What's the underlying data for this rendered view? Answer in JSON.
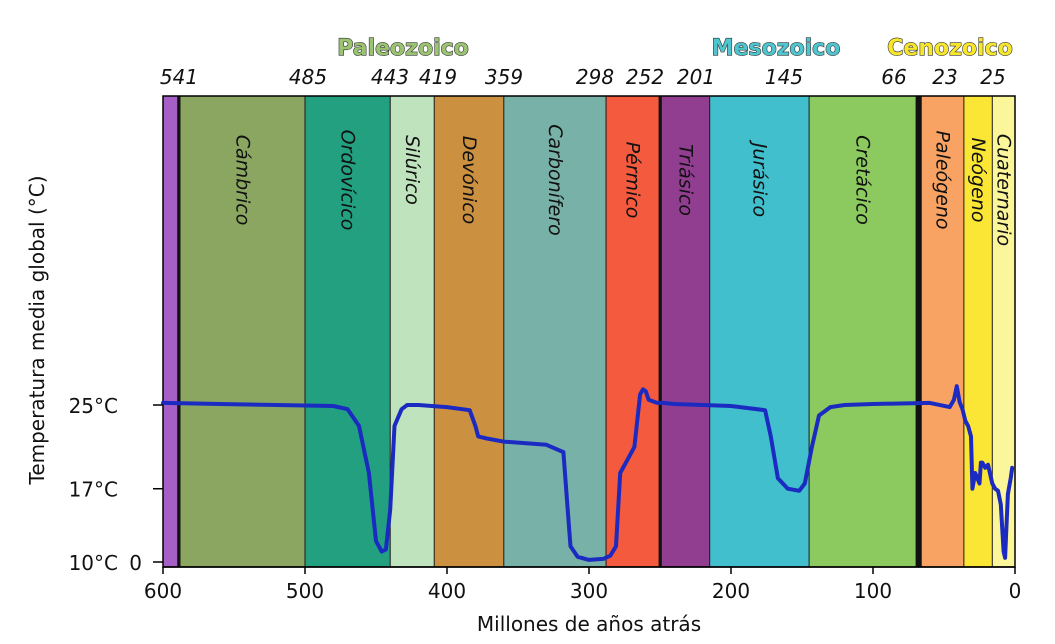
{
  "chart_data": {
    "type": "line",
    "xlabel": "Millones de años atrás",
    "ylabel": "Temperatura media global (°C)",
    "xlim": [
      600,
      0
    ],
    "x_ticks": [
      600,
      500,
      400,
      300,
      200,
      100,
      0
    ],
    "y_axis_zero_label": "0",
    "y_ticks": [
      {
        "value": 25,
        "label": "25°C"
      },
      {
        "value": 17,
        "label": "17°C"
      },
      {
        "value": 10,
        "label": "10°C"
      }
    ],
    "eras": [
      {
        "name": "Paleozoico",
        "color": "#9ac372"
      },
      {
        "name": "Mesozoico",
        "color": "#4fc6cf"
      },
      {
        "name": "Cenozoico",
        "color": "#f6e62c"
      }
    ],
    "boundary_labels": [
      "541",
      "485",
      "443",
      "419",
      "359",
      "298",
      "252",
      "201",
      "145",
      "66",
      "23",
      "25"
    ],
    "periods": [
      {
        "name": "",
        "start": 600,
        "end": 590,
        "color": "#a65fc6"
      },
      {
        "name": "Cámbrico",
        "start": 588,
        "end": 500,
        "color": "#8aa661"
      },
      {
        "name": "Ordovícico",
        "start": 500,
        "end": 440,
        "color": "#22a080"
      },
      {
        "name": "Silúrico",
        "start": 440,
        "end": 409,
        "color": "#bfe4bd"
      },
      {
        "name": "Devónico",
        "start": 409,
        "end": 360,
        "color": "#cb9140"
      },
      {
        "name": "Carbonífero",
        "start": 360,
        "end": 288,
        "color": "#77b1a7"
      },
      {
        "name": "Pérmico",
        "start": 288,
        "end": 251,
        "color": "#f45a3e"
      },
      {
        "name": "Triásico",
        "start": 249,
        "end": 215,
        "color": "#913e91"
      },
      {
        "name": "Jurásico",
        "start": 215,
        "end": 145,
        "color": "#41bfcc"
      },
      {
        "name": "Cretácico",
        "start": 145,
        "end": 70,
        "color": "#8cc95e"
      },
      {
        "name": "Paleógeno",
        "start": 66,
        "end": 36,
        "color": "#f8a263"
      },
      {
        "name": "Neógeno",
        "start": 36,
        "end": 16,
        "color": "#fbe636"
      },
      {
        "name": "Cuaternario",
        "start": 16,
        "end": 0,
        "color": "#fbf69a"
      }
    ],
    "series": [
      {
        "color": "#1b2bc2",
        "x": [
          600,
          560,
          520,
          480,
          470,
          462,
          455,
          450,
          446,
          443,
          440,
          437,
          432,
          428,
          420,
          400,
          384,
          380,
          378,
          372,
          360,
          330,
          318,
          315,
          313,
          308,
          300,
          290,
          285,
          281,
          278,
          272,
          268,
          264,
          262,
          260,
          258,
          254,
          252,
          248,
          240,
          200,
          176,
          172,
          167,
          160,
          152,
          148,
          143,
          138,
          130,
          120,
          100,
          60,
          46,
          43,
          41,
          39,
          37,
          35,
          33,
          31,
          30,
          28,
          25,
          24,
          23,
          21,
          19,
          16,
          14,
          12,
          10,
          8,
          7,
          6,
          5,
          3,
          2
        ],
        "y": [
          25.2,
          25.1,
          25.0,
          24.9,
          24.6,
          23.0,
          18.5,
          12.0,
          11.0,
          11.2,
          15.0,
          23.0,
          24.6,
          25.0,
          25.0,
          24.8,
          24.5,
          23.0,
          22.0,
          21.8,
          21.5,
          21.2,
          20.5,
          15.0,
          11.5,
          10.5,
          10.2,
          10.3,
          10.6,
          11.5,
          18.5,
          20.0,
          21.0,
          26.0,
          26.5,
          26.3,
          25.5,
          25.3,
          25.2,
          25.2,
          25.1,
          24.9,
          24.5,
          22.0,
          18.0,
          17.0,
          16.8,
          17.5,
          21.0,
          24.0,
          24.8,
          25.0,
          25.1,
          25.2,
          24.8,
          25.5,
          26.8,
          25.3,
          24.6,
          23.5,
          23.0,
          22.0,
          17.0,
          18.5,
          17.5,
          19.5,
          19.5,
          19.0,
          19.3,
          17.5,
          17.0,
          16.8,
          15.5,
          11.0,
          10.4,
          13.5,
          16.5,
          18.0,
          19.0
        ]
      }
    ],
    "grid": false,
    "legend": "none"
  }
}
